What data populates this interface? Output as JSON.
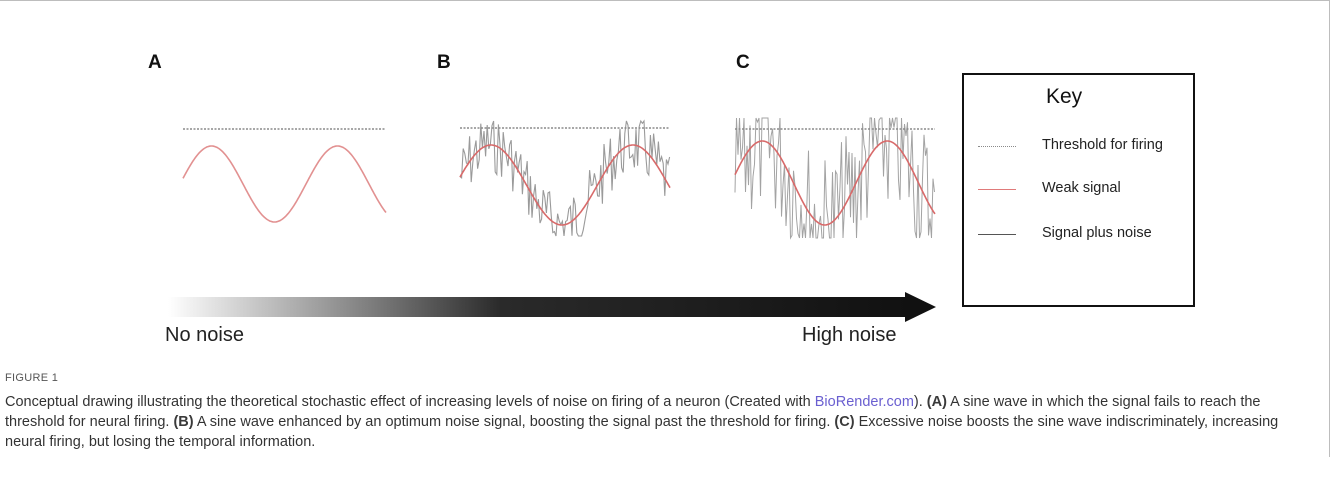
{
  "panels": [
    {
      "letter": "A"
    },
    {
      "letter": "B"
    },
    {
      "letter": "C"
    }
  ],
  "key": {
    "title": "Key",
    "items": [
      {
        "label": "Threshold for firing",
        "color": "#8a8a8a",
        "style": "dotted"
      },
      {
        "label": "Weak signal",
        "color": "#e07a7a",
        "style": "solid"
      },
      {
        "label": "Signal plus noise",
        "color": "#555555",
        "style": "solid"
      }
    ]
  },
  "arrow": {
    "left_label": "No noise",
    "right_label": "High noise"
  },
  "colors": {
    "signal": "#e29191",
    "noise": "#9a9a9a",
    "threshold": "#8a8a8a",
    "arrow": "#111111"
  },
  "caption": {
    "figure_label": "FIGURE 1",
    "intro": "Conceptual drawing illustrating the theoretical stochastic effect of increasing levels of noise on firing of a neuron (Created with ",
    "link_text": "BioRender.com",
    "intro_end": "). ",
    "a_label": "(A)",
    "a_text": " A sine wave in which the signal fails to reach the threshold for neural firing. ",
    "b_label": "(B)",
    "b_text": " A sine wave enhanced by an optimum noise signal, boosting the signal past the threshold for firing. ",
    "c_label": "(C)",
    "c_text": " Excessive noise boosts the sine wave indiscriminately, increasing neural firing, but losing the temporal information."
  }
}
